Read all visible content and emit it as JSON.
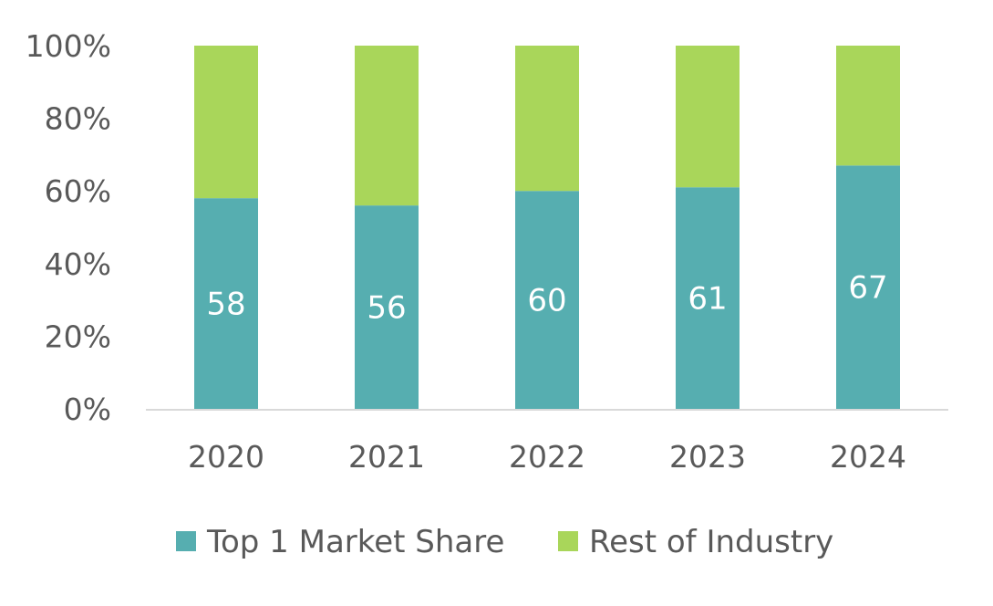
{
  "chart_data": {
    "type": "bar",
    "stacked": true,
    "percent_stacked": true,
    "categories": [
      "2020",
      "2021",
      "2022",
      "2023",
      "2024"
    ],
    "series": [
      {
        "name": "Top 1 Market Share",
        "values": [
          58,
          56,
          60,
          61,
          67
        ],
        "color": "#56aeb0",
        "data_labels": [
          "58",
          "56",
          "60",
          "61",
          "67"
        ]
      },
      {
        "name": "Rest of Industry",
        "values": [
          42,
          44,
          40,
          39,
          33
        ],
        "color": "#a9d65a"
      }
    ],
    "title": "",
    "xlabel": "",
    "ylabel": "",
    "ylim": [
      0,
      100
    ],
    "y_ticks": [
      "0%",
      "20%",
      "40%",
      "60%",
      "80%",
      "100%"
    ],
    "grid": false,
    "legend_position": "bottom"
  }
}
